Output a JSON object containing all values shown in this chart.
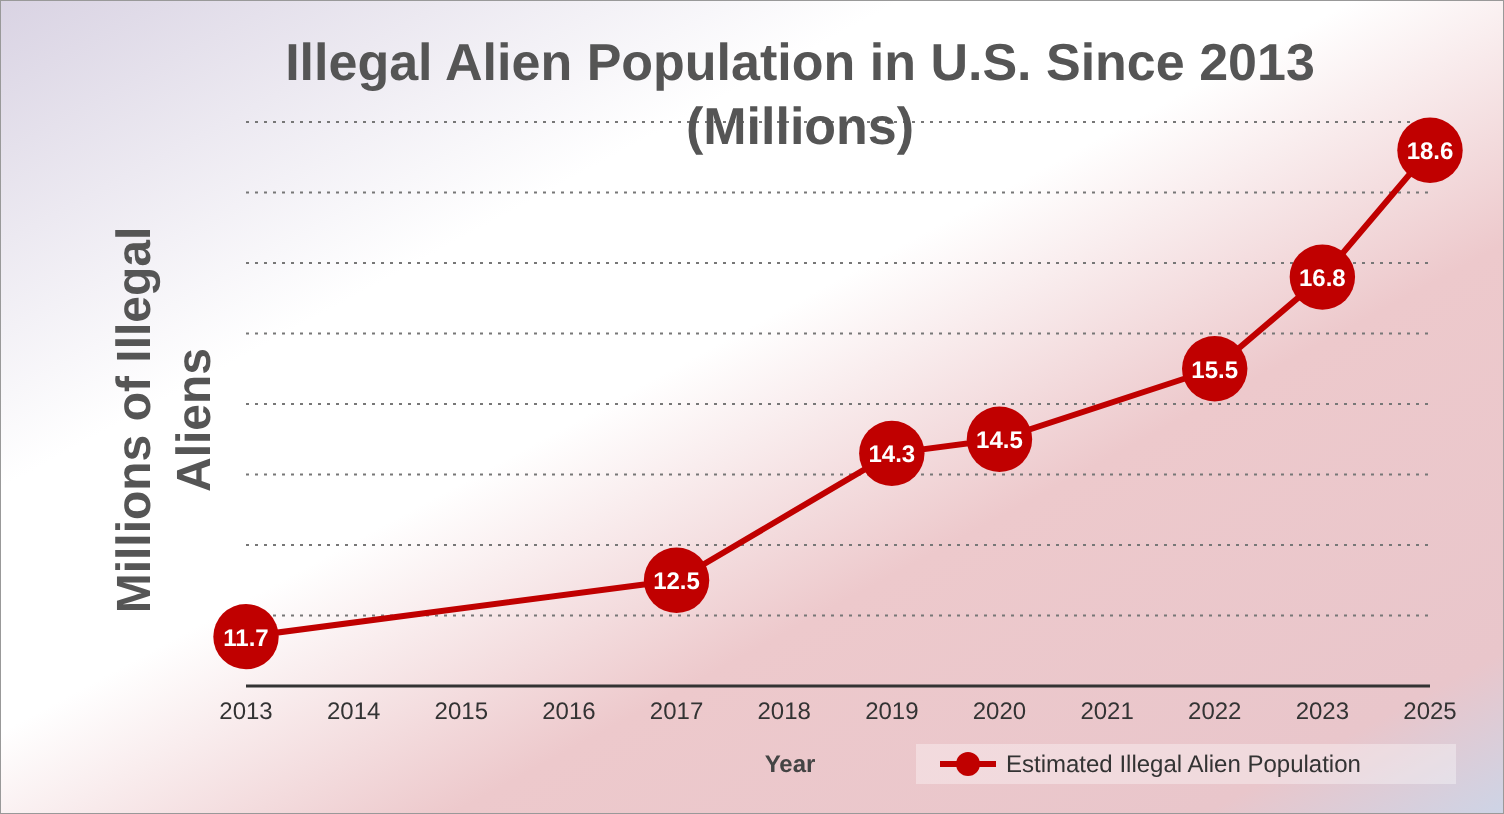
{
  "chart_data": {
    "type": "line",
    "title": "Illegal Alien Population in U.S. Since 2013\n(Millions)",
    "xlabel": "Year",
    "ylabel": "Millions of Illegal\nAliens",
    "categories": [
      "2013",
      "2014",
      "2015",
      "2016",
      "2017",
      "2018",
      "2019",
      "2020",
      "2021",
      "2022",
      "2023",
      "2025"
    ],
    "series": [
      {
        "name": "Estimated Illegal Alien Population",
        "color": "#c00000",
        "values": [
          11.7,
          null,
          null,
          null,
          12.5,
          null,
          14.3,
          14.5,
          null,
          15.5,
          16.8,
          18.6
        ]
      }
    ],
    "ylim": [
      11,
      19
    ],
    "yticks": [
      {
        "value": 12,
        "label": null
      },
      {
        "value": 13,
        "label": null
      },
      {
        "value": 14,
        "label": null
      },
      {
        "value": 15,
        "label": null
      },
      {
        "value": 16,
        "label": null
      },
      {
        "value": 17,
        "label": null
      },
      {
        "value": 18,
        "label": null
      },
      {
        "value": 19,
        "label": null
      }
    ],
    "grid": "y",
    "tick_labels": "x",
    "data_labels": true,
    "marker": "circle",
    "line_style": "solid",
    "legend": "bottom right"
  }
}
